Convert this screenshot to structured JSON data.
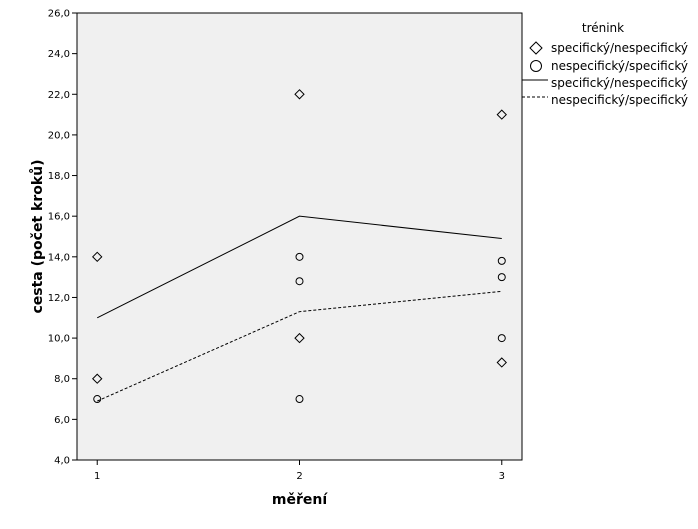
{
  "chart_data": {
    "type": "scatter",
    "xlabel": "měření",
    "ylabel": "cesta (počet kroků)",
    "x_ticks": [
      1,
      2,
      3
    ],
    "y_ticks": [
      "4,0",
      "6,0",
      "8,0",
      "10,0",
      "12,0",
      "14,0",
      "16,0",
      "18,0",
      "20,0",
      "22,0",
      "24,0",
      "26,0"
    ],
    "xlim": [
      0.9,
      3.1
    ],
    "ylim": [
      4,
      26
    ],
    "grid": false,
    "legend": {
      "title": "trénink",
      "placement": "right",
      "entries": [
        {
          "symbol": "diamond",
          "label": "specifický/nespecifický"
        },
        {
          "symbol": "circle",
          "label": "nespecifický/specifický"
        },
        {
          "symbol": "solid-line",
          "label": "specifický/nespecifický"
        },
        {
          "symbol": "dashed-line",
          "label": "nespecifický/specifický"
        }
      ]
    },
    "series": [
      {
        "name": "specifický/nespecifický",
        "marker": "diamond",
        "points": [
          [
            1,
            14.0
          ],
          [
            1,
            8.0
          ],
          [
            2,
            22.0
          ],
          [
            2,
            10.0
          ],
          [
            3,
            21.0
          ],
          [
            3,
            8.8
          ]
        ]
      },
      {
        "name": "nespecifický/specifický",
        "marker": "circle",
        "points": [
          [
            1,
            7.0
          ],
          [
            2,
            14.0
          ],
          [
            2,
            12.8
          ],
          [
            2,
            7.0
          ],
          [
            3,
            13.8
          ],
          [
            3,
            13.0
          ],
          [
            3,
            10.0
          ]
        ]
      },
      {
        "name": "specifický/nespecifický",
        "style": "solid-line",
        "points": [
          [
            1,
            11.0
          ],
          [
            2,
            16.0
          ],
          [
            3,
            14.9
          ]
        ]
      },
      {
        "name": "nespecifický/specifický",
        "style": "dashed-line",
        "points": [
          [
            1,
            6.9
          ],
          [
            2,
            11.3
          ],
          [
            3,
            12.3
          ]
        ]
      }
    ],
    "colors": {
      "plot_background": "#f0f0f0",
      "marks": "#000000",
      "page_background": "#ffffff"
    }
  }
}
